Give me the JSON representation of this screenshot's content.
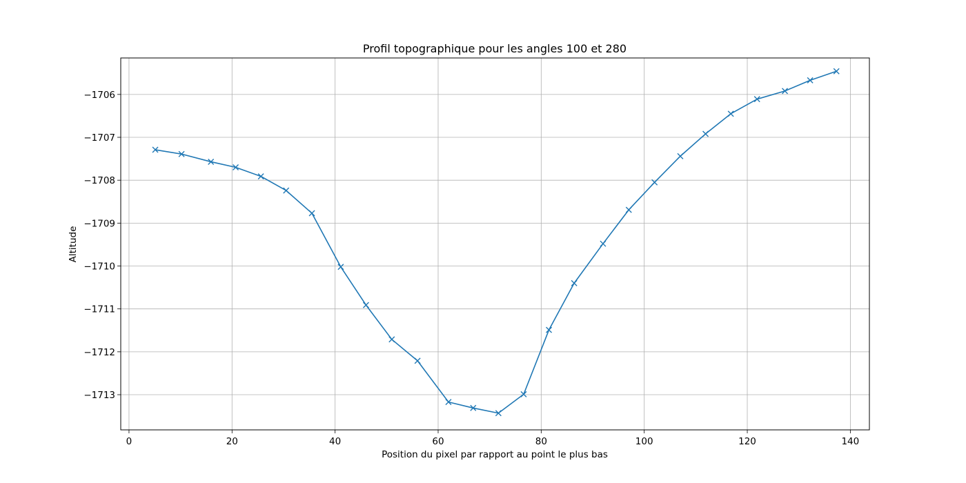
{
  "chart_data": {
    "type": "line",
    "title": "Profil topographique pour les angles 100 et 280",
    "xlabel": "Position du pixel par rapport au point le plus bas",
    "ylabel": "Altitude",
    "xlim": [
      -1.6,
      143.7
    ],
    "ylim": [
      -1713.82,
      -1705.15
    ],
    "xticks": [
      0,
      20,
      40,
      60,
      80,
      100,
      120,
      140
    ],
    "yticks": [
      -1713,
      -1712,
      -1711,
      -1710,
      -1709,
      -1708,
      -1707,
      -1706
    ],
    "grid": true,
    "line_color": "#1f77b4",
    "marker": "x",
    "series": [
      {
        "x": [
          5.1,
          10.2,
          15.9,
          20.7,
          25.6,
          30.5,
          35.5,
          41.1,
          46.0,
          51.0,
          56.0,
          62.0,
          66.8,
          71.7,
          76.6,
          81.5,
          86.4,
          92.0,
          97.0,
          102.0,
          107.0,
          111.9,
          116.8,
          121.9,
          127.3,
          132.2,
          137.3
        ],
        "y": [
          -1707.29,
          -1707.39,
          -1707.57,
          -1707.7,
          -1707.91,
          -1708.24,
          -1708.77,
          -1710.02,
          -1710.91,
          -1711.71,
          -1712.21,
          -1713.17,
          -1713.31,
          -1713.43,
          -1712.99,
          -1711.49,
          -1710.4,
          -1709.48,
          -1708.69,
          -1708.05,
          -1707.44,
          -1706.92,
          -1706.45,
          -1706.11,
          -1705.92,
          -1705.67,
          -1705.46
        ]
      }
    ]
  }
}
